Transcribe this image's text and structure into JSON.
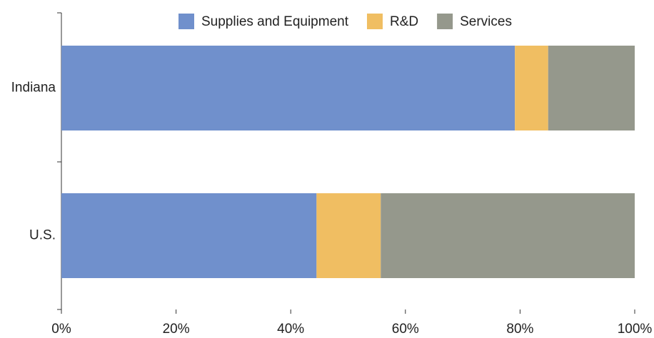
{
  "chart_data": {
    "type": "bar",
    "orientation": "horizontal",
    "stacked": true,
    "categories": [
      "Indiana",
      "U.S."
    ],
    "series": [
      {
        "name": "Supplies and Equipment",
        "color": "#7090cc",
        "values": [
          79.1,
          44.5
        ]
      },
      {
        "name": "R&D",
        "color": "#f0be62",
        "values": [
          5.8,
          11.2
        ]
      },
      {
        "name": "Services",
        "color": "#95988c",
        "values": [
          15.1,
          44.3
        ]
      }
    ],
    "xlim": [
      0,
      100
    ],
    "xticks": [
      {
        "value": 0,
        "label": "0%"
      },
      {
        "value": 20,
        "label": "20%"
      },
      {
        "value": 40,
        "label": "40%"
      },
      {
        "value": 60,
        "label": "60%"
      },
      {
        "value": 80,
        "label": "80%"
      },
      {
        "value": 100,
        "label": "100%"
      }
    ],
    "legend": "top"
  }
}
